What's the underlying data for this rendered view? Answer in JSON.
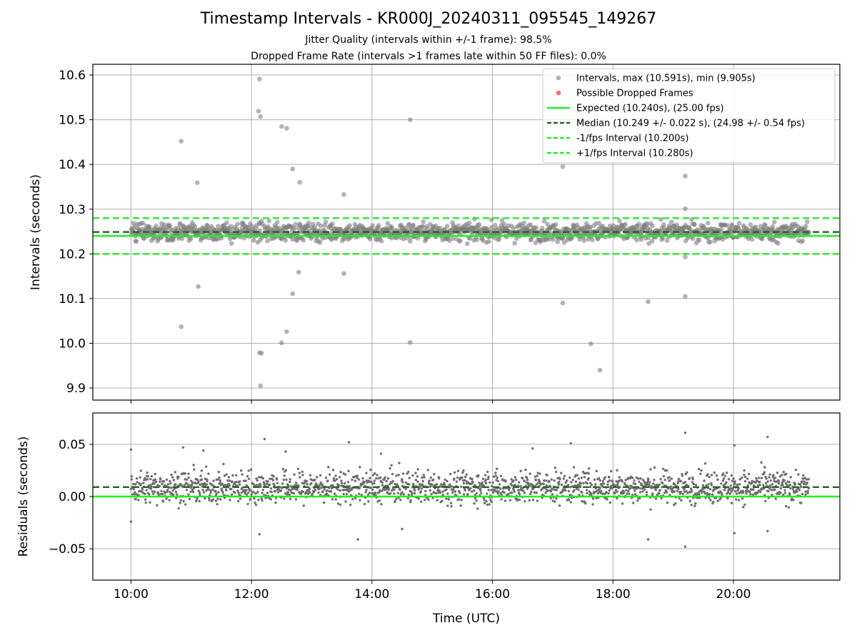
{
  "chart_data": [
    {
      "type": "scatter",
      "title": "Timestamp Intervals - KR000J_20240311_095545_149267",
      "subtitle_lines": [
        "Jitter Quality (intervals within +/-1 frame): 98.5%",
        "Dropped Frame Rate (intervals >1 frames late within 50 FF files): 0.0%"
      ],
      "ylabel": "Intervals (seconds)",
      "xlim": [
        "09:22",
        "21:46"
      ],
      "ylim": [
        9.873,
        10.624
      ],
      "yticks": [
        9.9,
        10.0,
        10.1,
        10.2,
        10.3,
        10.4,
        10.5,
        10.6
      ],
      "ytick_labels": [
        "9.9",
        "10.0",
        "10.1",
        "10.2",
        "10.3",
        "10.4",
        "10.5",
        "10.6"
      ],
      "grid": true,
      "legend_position": "top-right",
      "colors": {
        "points": "#808080",
        "dropped": "#ff4b4b",
        "expected": "#22ee22",
        "median": "#1a6b1a",
        "bounds": "#22ee22"
      },
      "series": [
        {
          "name": "Intervals, max (10.591s), min (9.905s)",
          "kind": "scatter",
          "dense_band": {
            "x_range": [
              "10:00",
              "21:15"
            ],
            "center": 10.249,
            "spread": 0.022
          },
          "outliers": [
            [
              "10:50",
              10.452
            ],
            [
              "11:06",
              10.359
            ],
            [
              "11:07",
              10.127
            ],
            [
              "10:50",
              10.037
            ],
            [
              "12:08",
              10.591
            ],
            [
              "12:07",
              10.519
            ],
            [
              "12:09",
              10.507
            ],
            [
              "12:30",
              10.485
            ],
            [
              "12:35",
              10.481
            ],
            [
              "12:41",
              10.39
            ],
            [
              "12:48",
              10.36
            ],
            [
              "12:47",
              10.159
            ],
            [
              "12:41",
              10.111
            ],
            [
              "12:35",
              10.026
            ],
            [
              "12:30",
              10.001
            ],
            [
              "12:08",
              9.979
            ],
            [
              "12:10",
              9.978
            ],
            [
              "12:09",
              9.905
            ],
            [
              "13:32",
              10.333
            ],
            [
              "13:32",
              10.156
            ],
            [
              "14:38",
              10.5
            ],
            [
              "14:38",
              10.002
            ],
            [
              "17:10",
              10.395
            ],
            [
              "17:10",
              10.09
            ],
            [
              "17:38",
              9.999
            ],
            [
              "17:47",
              9.94
            ],
            [
              "18:35",
              10.093
            ],
            [
              "19:12",
              10.374
            ],
            [
              "19:12",
              10.301
            ],
            [
              "19:12",
              10.193
            ],
            [
              "19:12",
              10.105
            ]
          ]
        },
        {
          "name": "Possible Dropped Frames",
          "kind": "scatter",
          "values": []
        },
        {
          "name": "Expected (10.240s), (25.00 fps)",
          "kind": "hline",
          "y": 10.24
        },
        {
          "name": "Median (10.249 +/- 0.022 s), (24.98 +/- 0.54 fps)",
          "kind": "hline",
          "y": 10.249
        },
        {
          "name": "-1/fps Interval (10.200s)",
          "kind": "hline",
          "y": 10.2
        },
        {
          "name": "+1/fps Interval (10.280s)",
          "kind": "hline",
          "y": 10.28
        }
      ]
    },
    {
      "type": "scatter",
      "xlabel": "Time (UTC)",
      "ylabel": "Residuals (seconds)",
      "xlim": [
        "09:22",
        "21:46"
      ],
      "ylim": [
        -0.08,
        0.08
      ],
      "yticks": [
        -0.05,
        0.0,
        0.05
      ],
      "ytick_labels": [
        "−0.05",
        "0.00",
        "0.05"
      ],
      "xticks": [
        "10:00",
        "12:00",
        "14:00",
        "16:00",
        "18:00",
        "20:00"
      ],
      "grid": true,
      "series": [
        {
          "kind": "scatter",
          "dense_band": {
            "x_range": [
              "10:00",
              "21:15"
            ],
            "center": 0.009,
            "spread": 0.014
          },
          "outliers": [
            [
              "10:00",
              0.045
            ],
            [
              "10:00",
              -0.024
            ],
            [
              "10:52",
              0.047
            ],
            [
              "11:12",
              0.044
            ],
            [
              "12:13",
              0.055
            ],
            [
              "12:34",
              0.043
            ],
            [
              "13:37",
              0.052
            ],
            [
              "13:46",
              -0.041
            ],
            [
              "14:09",
              0.041
            ],
            [
              "14:30",
              -0.031
            ],
            [
              "16:40",
              0.046
            ],
            [
              "17:18",
              0.051
            ],
            [
              "18:35",
              -0.041
            ],
            [
              "19:12",
              0.061
            ],
            [
              "19:12",
              -0.048
            ],
            [
              "20:01",
              0.049
            ],
            [
              "20:34",
              0.057
            ],
            [
              "20:34",
              -0.033
            ],
            [
              "20:01",
              -0.035
            ],
            [
              "12:08",
              -0.036
            ]
          ]
        },
        {
          "name": "Expected",
          "kind": "hline",
          "y": 0.0
        },
        {
          "name": "Median",
          "kind": "hline",
          "y": 0.009
        }
      ]
    }
  ]
}
